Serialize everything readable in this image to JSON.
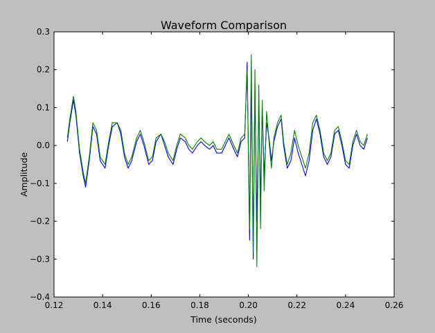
{
  "chart_data": {
    "type": "line",
    "title": "Waveform Comparison",
    "xlabel": "Time (seconds)",
    "ylabel": "Amplitude",
    "xlim": [
      0.12,
      0.26
    ],
    "ylim": [
      -0.4,
      0.3
    ],
    "xticks": [
      0.12,
      0.14,
      0.16,
      0.18,
      0.2,
      0.22,
      0.24,
      0.26
    ],
    "xtick_labels": [
      "0.12",
      "0.14",
      "0.16",
      "0.18",
      "0.20",
      "0.22",
      "0.24",
      "0.26"
    ],
    "yticks": [
      -0.4,
      -0.3,
      -0.2,
      -0.1,
      0.0,
      0.1,
      0.2,
      0.3
    ],
    "ytick_labels": [
      "−0.4",
      "−0.3",
      "−0.2",
      "−0.1",
      "0.0",
      "0.1",
      "0.2",
      "0.3"
    ],
    "grid": false,
    "legend": "none",
    "series": [
      {
        "color": "#0000ff",
        "x": [
          0.1255,
          0.1265,
          0.1275,
          0.128,
          0.129,
          0.1305,
          0.132,
          0.133,
          0.1345,
          0.136,
          0.1375,
          0.139,
          0.141,
          0.1425,
          0.144,
          0.146,
          0.1475,
          0.149,
          0.1505,
          0.152,
          0.154,
          0.1555,
          0.157,
          0.159,
          0.1605,
          0.162,
          0.164,
          0.1655,
          0.167,
          0.169,
          0.1705,
          0.172,
          0.174,
          0.1755,
          0.177,
          0.179,
          0.1805,
          0.182,
          0.184,
          0.1855,
          0.187,
          0.189,
          0.1905,
          0.192,
          0.194,
          0.1955,
          0.197,
          0.1985,
          0.1995,
          0.2005,
          0.2012,
          0.202,
          0.2027,
          0.2035,
          0.2043,
          0.205,
          0.2057,
          0.2065,
          0.2075,
          0.2085,
          0.2095,
          0.2105,
          0.212,
          0.2135,
          0.2145,
          0.216,
          0.2175,
          0.219,
          0.2205,
          0.222,
          0.2235,
          0.225,
          0.2265,
          0.228,
          0.2295,
          0.231,
          0.2325,
          0.234,
          0.2355,
          0.237,
          0.2385,
          0.24,
          0.2415,
          0.243,
          0.2445,
          0.246,
          0.2475,
          0.249
        ],
        "y": [
          0.01,
          0.06,
          0.1,
          0.12,
          0.08,
          -0.02,
          -0.08,
          -0.11,
          -0.04,
          0.05,
          0.03,
          -0.04,
          -0.06,
          0.0,
          0.05,
          0.06,
          0.03,
          -0.03,
          -0.06,
          -0.04,
          0.01,
          0.03,
          0.0,
          -0.05,
          -0.04,
          0.01,
          0.03,
          0.0,
          -0.03,
          -0.05,
          -0.01,
          0.02,
          0.01,
          -0.01,
          -0.02,
          0.0,
          0.01,
          0.0,
          -0.01,
          0.0,
          -0.02,
          -0.02,
          0.0,
          0.02,
          -0.01,
          -0.03,
          0.01,
          0.02,
          0.22,
          -0.25,
          0.18,
          -0.3,
          0.15,
          -0.2,
          0.12,
          -0.15,
          0.1,
          -0.08,
          0.06,
          0.02,
          -0.04,
          0.01,
          0.05,
          0.07,
          0.0,
          -0.06,
          -0.04,
          0.02,
          -0.02,
          -0.05,
          -0.08,
          -0.04,
          0.04,
          0.07,
          0.03,
          -0.03,
          -0.05,
          -0.03,
          0.03,
          0.04,
          0.0,
          -0.05,
          -0.06,
          0.0,
          0.03,
          0.0,
          -0.01,
          0.02
        ]
      },
      {
        "color": "#008000",
        "x": [
          0.1255,
          0.1265,
          0.1275,
          0.128,
          0.129,
          0.1305,
          0.132,
          0.133,
          0.1345,
          0.136,
          0.1375,
          0.139,
          0.141,
          0.1425,
          0.144,
          0.146,
          0.1475,
          0.149,
          0.1505,
          0.152,
          0.154,
          0.1555,
          0.157,
          0.159,
          0.1605,
          0.162,
          0.164,
          0.1655,
          0.167,
          0.169,
          0.1705,
          0.172,
          0.174,
          0.1755,
          0.177,
          0.179,
          0.1805,
          0.182,
          0.184,
          0.1855,
          0.187,
          0.189,
          0.1905,
          0.192,
          0.194,
          0.1955,
          0.197,
          0.1985,
          0.1995,
          0.2005,
          0.2012,
          0.202,
          0.2027,
          0.2035,
          0.2043,
          0.205,
          0.2057,
          0.2065,
          0.2075,
          0.2085,
          0.2095,
          0.2105,
          0.212,
          0.2135,
          0.2145,
          0.216,
          0.2175,
          0.219,
          0.2205,
          0.222,
          0.2235,
          0.225,
          0.2265,
          0.228,
          0.2295,
          0.231,
          0.2325,
          0.234,
          0.2355,
          0.237,
          0.2385,
          0.24,
          0.2415,
          0.243,
          0.2445,
          0.246,
          0.2475,
          0.249
        ],
        "y": [
          0.02,
          0.07,
          0.11,
          0.13,
          0.09,
          -0.01,
          -0.07,
          -0.1,
          -0.03,
          0.06,
          0.04,
          -0.03,
          -0.05,
          0.01,
          0.06,
          0.06,
          0.04,
          -0.02,
          -0.05,
          -0.03,
          0.02,
          0.04,
          0.01,
          -0.04,
          -0.03,
          0.02,
          0.03,
          0.01,
          -0.02,
          -0.04,
          0.0,
          0.03,
          0.02,
          0.0,
          -0.01,
          0.01,
          0.02,
          0.01,
          0.0,
          0.01,
          -0.01,
          -0.01,
          0.01,
          0.03,
          0.0,
          -0.02,
          0.02,
          0.03,
          0.2,
          -0.22,
          0.24,
          -0.28,
          0.2,
          -0.32,
          0.16,
          -0.22,
          0.12,
          -0.12,
          0.09,
          0.01,
          -0.06,
          0.02,
          0.06,
          0.08,
          0.01,
          -0.05,
          -0.02,
          0.04,
          0.0,
          -0.03,
          -0.06,
          -0.02,
          0.06,
          0.08,
          0.04,
          -0.02,
          -0.04,
          -0.02,
          0.04,
          0.05,
          0.01,
          -0.04,
          -0.05,
          0.01,
          0.04,
          0.01,
          0.0,
          0.03
        ]
      }
    ]
  }
}
